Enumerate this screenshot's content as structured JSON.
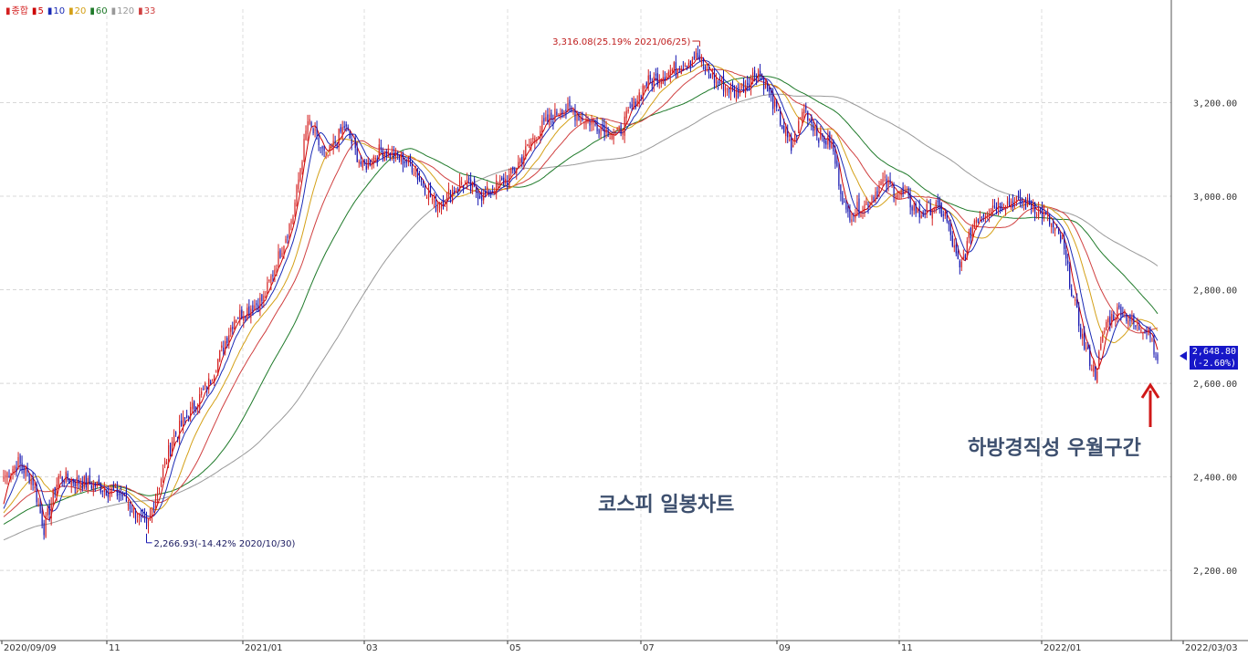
{
  "legend": {
    "items": [
      {
        "label": "종합",
        "color": "#d42020"
      },
      {
        "label": "5",
        "color": "#cc0000"
      },
      {
        "label": "10",
        "color": "#1a2ab5"
      },
      {
        "label": "20",
        "color": "#d4a017"
      },
      {
        "label": "60",
        "color": "#1f7a2a"
      },
      {
        "label": "120",
        "color": "#999999"
      },
      {
        "label": "33",
        "color": "#d04040"
      }
    ]
  },
  "annotations": {
    "high": "3,316.08(25.19% 2021/06/25)",
    "low": "2,266.93(-14.42% 2020/10/30)",
    "chart_caption": "코스피   일봉차트",
    "note": "하방경직성  우월구간"
  },
  "price_tag": {
    "price": "2,648.80",
    "change": "(-2.60%)"
  },
  "chart_data": {
    "type": "candlestick",
    "yticks": [
      2200,
      2400,
      2600,
      2800,
      3000,
      3200
    ],
    "ytick_labels": [
      "2,200.00",
      "2,400.00",
      "2,600.00",
      "2,800.00",
      "3,000.00",
      "3,200.00"
    ],
    "ylim": [
      2050,
      3400
    ],
    "xtick_labels": [
      "2020/09/09",
      "11",
      "2021/01",
      "03",
      "05",
      "07",
      "09",
      "11",
      "2022/01",
      "2022/03/03"
    ],
    "grid": true,
    "up_color": "#d42020",
    "down_color": "#1515b0",
    "anchors_close": [
      [
        0,
        2400
      ],
      [
        8,
        2430
      ],
      [
        16,
        2390
      ],
      [
        22,
        2290
      ],
      [
        30,
        2400
      ],
      [
        40,
        2390
      ],
      [
        52,
        2380
      ],
      [
        65,
        2360
      ],
      [
        78,
        2290
      ],
      [
        92,
        2480
      ],
      [
        112,
        2600
      ],
      [
        126,
        2740
      ],
      [
        142,
        2780
      ],
      [
        158,
        2960
      ],
      [
        166,
        3160
      ],
      [
        176,
        3080
      ],
      [
        186,
        3150
      ],
      [
        196,
        3060
      ],
      [
        206,
        3100
      ],
      [
        222,
        3070
      ],
      [
        236,
        2980
      ],
      [
        250,
        3030
      ],
      [
        262,
        3000
      ],
      [
        276,
        3040
      ],
      [
        292,
        3140
      ],
      [
        305,
        3190
      ],
      [
        320,
        3160
      ],
      [
        335,
        3130
      ],
      [
        350,
        3240
      ],
      [
        365,
        3270
      ],
      [
        378,
        3300
      ],
      [
        388,
        3250
      ],
      [
        400,
        3220
      ],
      [
        412,
        3270
      ],
      [
        420,
        3200
      ],
      [
        430,
        3100
      ],
      [
        437,
        3190
      ],
      [
        445,
        3130
      ],
      [
        452,
        3110
      ],
      [
        460,
        2960
      ],
      [
        470,
        2980
      ],
      [
        480,
        3030
      ],
      [
        492,
        3000
      ],
      [
        500,
        2960
      ],
      [
        508,
        2980
      ],
      [
        514,
        2960
      ],
      [
        522,
        2840
      ],
      [
        530,
        2950
      ],
      [
        540,
        2980
      ],
      [
        552,
        2990
      ],
      [
        562,
        2980
      ],
      [
        570,
        2950
      ],
      [
        578,
        2900
      ],
      [
        584,
        2780
      ],
      [
        590,
        2680
      ],
      [
        596,
        2620
      ],
      [
        602,
        2730
      ],
      [
        610,
        2760
      ],
      [
        618,
        2720
      ],
      [
        625,
        2720
      ],
      [
        630,
        2648.8
      ]
    ],
    "ma_series": [
      {
        "period": 5,
        "color": "#cc0000"
      },
      {
        "period": 10,
        "color": "#1a2ab5"
      },
      {
        "period": 20,
        "color": "#d4a017"
      },
      {
        "period": 33,
        "color": "#d04040"
      },
      {
        "period": 60,
        "color": "#1f7a2a"
      },
      {
        "period": 120,
        "color": "#999999"
      }
    ]
  }
}
